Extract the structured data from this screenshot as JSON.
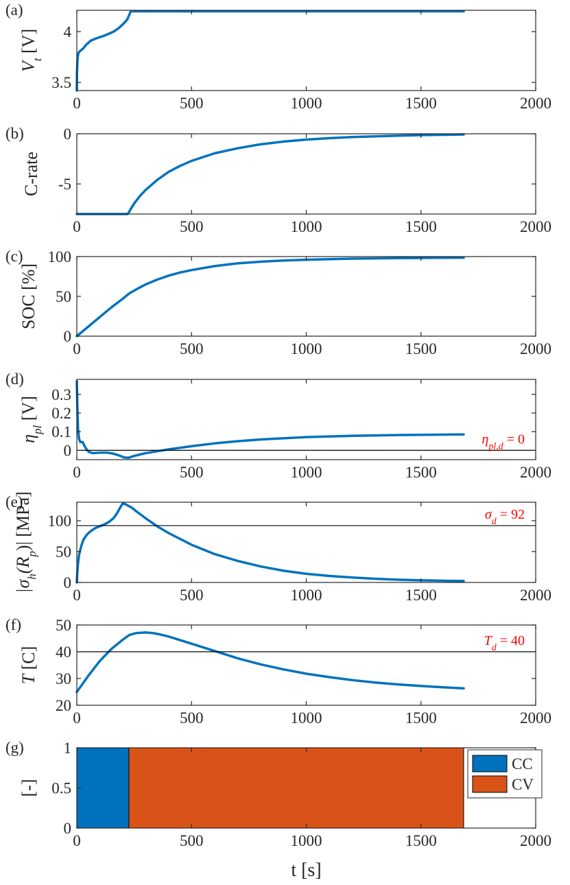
{
  "chart_data": [
    {
      "id": "a",
      "type": "line",
      "panel_label": "(a)",
      "ylabel": "V_t [V]",
      "ylabel_main": "V",
      "ylabel_sub": "t",
      "ylabel_unit": " [V]",
      "xlim": [
        0,
        2000
      ],
      "ylim": [
        3.42,
        4.21
      ],
      "xticks": [
        0,
        500,
        1000,
        1500,
        2000
      ],
      "xtick_labels": [
        "0",
        "500",
        "1000",
        "1500",
        "2000"
      ],
      "yticks": [
        3.5,
        4
      ],
      "ytick_labels": [
        "3.5",
        "4"
      ],
      "series": [
        {
          "name": "V_t",
          "color": "#0072BD",
          "x": [
            0,
            1,
            3,
            6,
            10,
            20,
            30,
            40,
            60,
            80,
            100,
            120,
            140,
            160,
            180,
            200,
            220,
            235,
            260,
            400,
            800,
            1200,
            1686
          ],
          "y": [
            3.42,
            3.6,
            3.73,
            3.78,
            3.8,
            3.82,
            3.84,
            3.87,
            3.91,
            3.93,
            3.945,
            3.96,
            3.98,
            4.0,
            4.03,
            4.07,
            4.12,
            4.2,
            4.2,
            4.2,
            4.2,
            4.2,
            4.2
          ]
        }
      ]
    },
    {
      "id": "b",
      "type": "line",
      "panel_label": "(b)",
      "ylabel": "C-rate",
      "xlim": [
        0,
        2000
      ],
      "ylim": [
        -8,
        0
      ],
      "xticks": [
        0,
        500,
        1000,
        1500,
        2000
      ],
      "xtick_labels": [
        "0",
        "500",
        "1000",
        "1500",
        "2000"
      ],
      "yticks": [
        -5,
        0
      ],
      "ytick_labels": [
        "-5",
        "0"
      ],
      "series": [
        {
          "name": "C-rate",
          "color": "#0072BD",
          "x": [
            0,
            220,
            225,
            235,
            250,
            275,
            300,
            350,
            400,
            450,
            500,
            600,
            700,
            800,
            900,
            1000,
            1100,
            1200,
            1300,
            1400,
            1500,
            1600,
            1686
          ],
          "y": [
            -8,
            -8,
            -7.9,
            -7.5,
            -6.95,
            -6.2,
            -5.6,
            -4.6,
            -3.8,
            -3.2,
            -2.7,
            -1.95,
            -1.45,
            -1.05,
            -0.78,
            -0.58,
            -0.44,
            -0.33,
            -0.25,
            -0.19,
            -0.14,
            -0.1,
            -0.07
          ]
        }
      ]
    },
    {
      "id": "c",
      "type": "line",
      "panel_label": "(c)",
      "ylabel": "SOC [%]",
      "xlim": [
        0,
        2000
      ],
      "ylim": [
        0,
        100
      ],
      "xticks": [
        0,
        500,
        1000,
        1500,
        2000
      ],
      "xtick_labels": [
        "0",
        "500",
        "1000",
        "1500",
        "2000"
      ],
      "yticks": [
        0,
        50,
        100
      ],
      "ytick_labels": [
        "0",
        "50",
        "100"
      ],
      "series": [
        {
          "name": "SOC",
          "color": "#0072BD",
          "x": [
            0,
            50,
            100,
            150,
            200,
            230,
            260,
            300,
            350,
            400,
            450,
            500,
            600,
            700,
            800,
            900,
            1000,
            1100,
            1200,
            1300,
            1400,
            1500,
            1600,
            1686
          ],
          "y": [
            0,
            12,
            24,
            36,
            47,
            54,
            59,
            65,
            71,
            76,
            80,
            83,
            88,
            91.5,
            93.5,
            95,
            96,
            96.8,
            97.4,
            97.8,
            98.1,
            98.3,
            98.5,
            98.6
          ]
        }
      ]
    },
    {
      "id": "d",
      "type": "line",
      "panel_label": "(d)",
      "ylabel": "η_pl [V]",
      "ylabel_main": "η",
      "ylabel_sub": "pl",
      "ylabel_unit": " [V]",
      "xlim": [
        0,
        2000
      ],
      "ylim": [
        -0.05,
        0.38
      ],
      "xticks": [
        0,
        500,
        1000,
        1500,
        2000
      ],
      "xtick_labels": [
        "0",
        "500",
        "1000",
        "1500",
        "2000"
      ],
      "yticks": [
        0,
        0.1,
        0.2,
        0.3
      ],
      "ytick_labels": [
        "0",
        "0.1",
        "0.2",
        "0.3"
      ],
      "threshold": {
        "value": 0,
        "label": "η_pl,d = 0",
        "label_main": "η",
        "label_sub": "pl,d",
        "label_rest": " = 0",
        "color": "#ff0000"
      },
      "series": [
        {
          "name": "η_pl",
          "color": "#0072BD",
          "x": [
            0,
            2,
            5,
            10,
            15,
            25,
            35,
            45,
            55,
            70,
            100,
            130,
            160,
            190,
            205,
            225,
            250,
            300,
            350,
            400,
            500,
            600,
            700,
            800,
            1000,
            1200,
            1400,
            1600,
            1686
          ],
          "y": [
            0.37,
            0.25,
            0.12,
            0.06,
            0.045,
            0.045,
            0.02,
            0.0,
            -0.01,
            -0.015,
            -0.012,
            -0.012,
            -0.018,
            -0.03,
            -0.038,
            -0.04,
            -0.03,
            -0.015,
            -0.005,
            0.005,
            0.022,
            0.037,
            0.049,
            0.058,
            0.071,
            0.078,
            0.082,
            0.084,
            0.085
          ]
        }
      ]
    },
    {
      "id": "e",
      "type": "line",
      "panel_label": "(e)",
      "ylabel": "|σ_h(R_p)| [MPa]",
      "ylabel_pre": "|σ",
      "ylabel_sub1": "h",
      "ylabel_mid": "(R",
      "ylabel_sub2": "p",
      "ylabel_post": ")| [MPa]",
      "xlim": [
        0,
        2000
      ],
      "ylim": [
        0,
        130
      ],
      "xticks": [
        0,
        500,
        1000,
        1500,
        2000
      ],
      "xtick_labels": [
        "0",
        "500",
        "1000",
        "1500",
        "2000"
      ],
      "yticks": [
        0,
        50,
        100
      ],
      "ytick_labels": [
        "0",
        "50",
        "100"
      ],
      "threshold": {
        "value": 92,
        "label": "σ_d = 92",
        "label_main": "σ",
        "label_sub": "d",
        "label_rest": " = 92",
        "color": "#ff0000"
      },
      "series": [
        {
          "name": "|σ_h(R_p)|",
          "color": "#0072BD",
          "x": [
            0,
            2,
            5,
            10,
            20,
            30,
            45,
            60,
            80,
            100,
            120,
            140,
            160,
            175,
            190,
            200,
            210,
            220,
            240,
            260,
            300,
            350,
            400,
            500,
            600,
            700,
            800,
            900,
            1000,
            1100,
            1200,
            1300,
            1400,
            1500,
            1600,
            1686
          ],
          "y": [
            0,
            15,
            30,
            45,
            60,
            70,
            78,
            83,
            88,
            91,
            94,
            98,
            104,
            112,
            122,
            128,
            127,
            125,
            121,
            115,
            104,
            91,
            80,
            61,
            46,
            35,
            26,
            19,
            14,
            10.5,
            8,
            6,
            4.5,
            3.5,
            2.8,
            2.3
          ]
        }
      ]
    },
    {
      "id": "f",
      "type": "line",
      "panel_label": "(f)",
      "ylabel": "T [C]",
      "ylabel_main": "T",
      "ylabel_unit": " [C]",
      "xlim": [
        0,
        2000
      ],
      "ylim": [
        20,
        50
      ],
      "xticks": [
        0,
        500,
        1000,
        1500,
        2000
      ],
      "xtick_labels": [
        "0",
        "500",
        "1000",
        "1500",
        "2000"
      ],
      "yticks": [
        20,
        30,
        40,
        50
      ],
      "ytick_labels": [
        "20",
        "30",
        "40",
        "50"
      ],
      "threshold": {
        "value": 40,
        "label": "T_d = 40",
        "label_main": "T",
        "label_sub": "d",
        "label_rest": " = 40",
        "color": "#ff0000"
      },
      "series": [
        {
          "name": "T",
          "color": "#0072BD",
          "x": [
            0,
            25,
            50,
            100,
            150,
            200,
            230,
            260,
            300,
            330,
            360,
            400,
            500,
            600,
            700,
            800,
            900,
            1000,
            1100,
            1200,
            1300,
            1400,
            1500,
            1600,
            1686
          ],
          "y": [
            25,
            28,
            31,
            36.5,
            41,
            44.5,
            46.3,
            47,
            47.2,
            47,
            46.5,
            45.7,
            43,
            40.3,
            37.6,
            35.3,
            33.4,
            31.8,
            30.5,
            29.4,
            28.5,
            27.8,
            27.2,
            26.7,
            26.3
          ]
        }
      ]
    },
    {
      "id": "g",
      "type": "bar",
      "panel_label": "(g)",
      "ylabel": "[-]",
      "xlabel": "t [s]",
      "xlim": [
        0,
        2000
      ],
      "ylim": [
        0,
        1
      ],
      "xticks": [
        0,
        500,
        1000,
        1500,
        2000
      ],
      "xtick_labels": [
        "0",
        "500",
        "1000",
        "1500",
        "2000"
      ],
      "yticks": [
        0,
        0.5,
        1
      ],
      "ytick_labels": [
        "0",
        "0.5",
        "1"
      ],
      "bars": [
        {
          "name": "CC",
          "x0": 0,
          "x1": 227,
          "value": 1,
          "color": "#0072BD"
        },
        {
          "name": "CV",
          "x0": 227,
          "x1": 1686,
          "value": 1,
          "color": "#D95319"
        }
      ],
      "legend": {
        "location": "top-right",
        "entries": [
          "CC",
          "CV"
        ]
      }
    }
  ]
}
